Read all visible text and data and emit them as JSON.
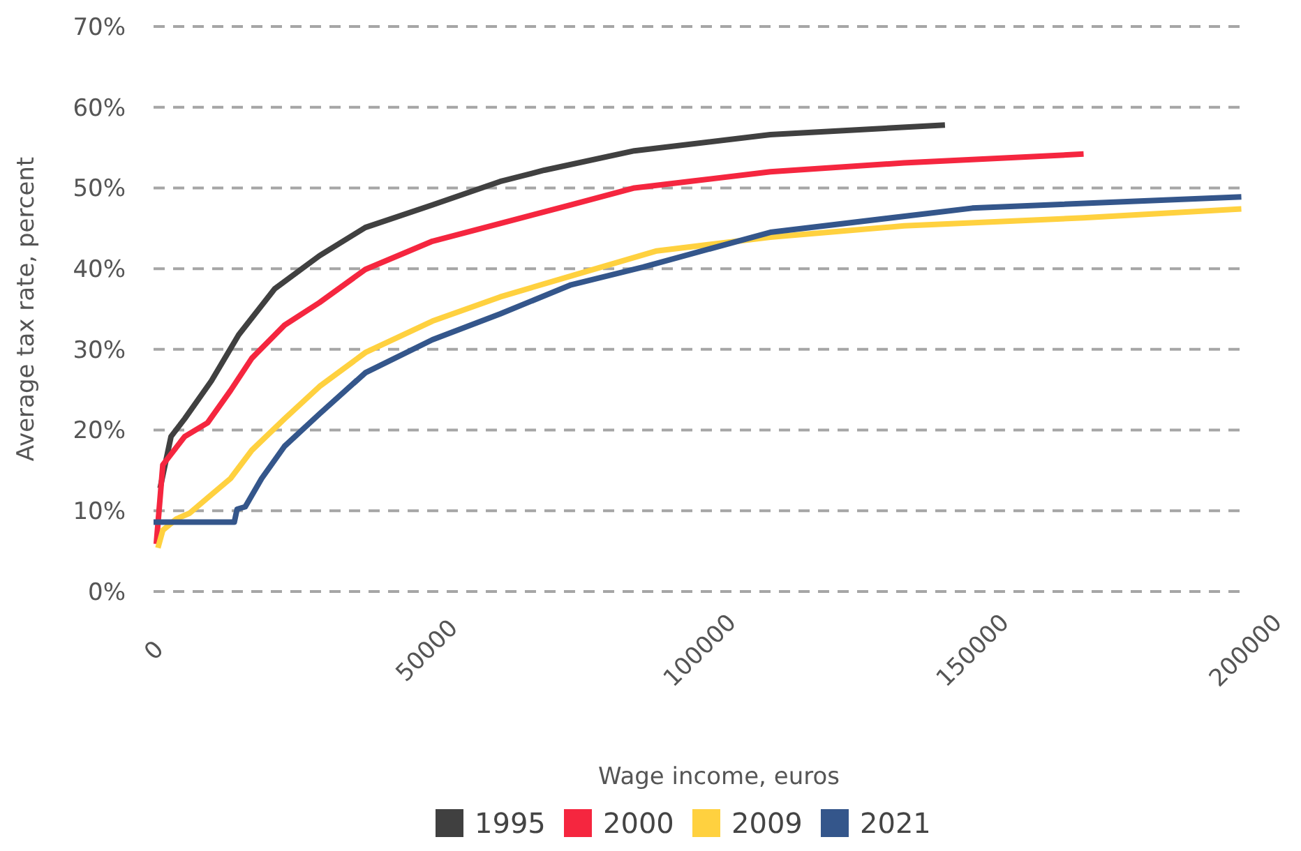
{
  "chart_data": {
    "type": "line",
    "xlabel": "Wage income, euros",
    "ylabel": "Average tax rate, percent",
    "xlim": [
      0,
      200000
    ],
    "xticks": [
      0,
      50000,
      100000,
      150000,
      200000
    ],
    "ylim": [
      0,
      70
    ],
    "yticks": [
      {
        "value": 0,
        "label": "0%"
      },
      {
        "value": 10,
        "label": "10%"
      },
      {
        "value": 20,
        "label": "20%"
      },
      {
        "value": 30,
        "label": "30%"
      },
      {
        "value": 40,
        "label": "40%"
      },
      {
        "value": 50,
        "label": "50%"
      },
      {
        "value": 60,
        "label": "60%"
      },
      {
        "value": 70,
        "label": "70%"
      }
    ],
    "grid": "y",
    "legend": "bottom",
    "marker": "none",
    "line_style": "solid",
    "series": [
      {
        "name": "1995",
        "color": "#404040",
        "x": [
          1200,
          3200,
          5700,
          10600,
          15600,
          22200,
          30400,
          38800,
          51100,
          63500,
          71600,
          88100,
          113000,
          145000
        ],
        "values": [
          12.8,
          19.2,
          21.4,
          26.1,
          31.8,
          37.5,
          41.6,
          45.1,
          47.9,
          50.8,
          52.2,
          54.6,
          56.6,
          57.8
        ]
      },
      {
        "name": "2000",
        "color": "#f5263f",
        "x": [
          500,
          1700,
          5700,
          9900,
          14100,
          18000,
          24000,
          30400,
          38800,
          51100,
          63500,
          76500,
          88100,
          113000,
          137500,
          170400
        ],
        "values": [
          5.9,
          15.7,
          19.2,
          20.9,
          24.9,
          28.9,
          33.0,
          35.8,
          39.9,
          43.4,
          45.6,
          47.9,
          50.0,
          52.0,
          53.1,
          54.2
        ]
      },
      {
        "name": "2009",
        "color": "#ffd13f",
        "x": [
          800,
          1700,
          4200,
          6600,
          9900,
          14100,
          18000,
          24000,
          30400,
          38800,
          51100,
          63500,
          76500,
          92200,
          113000,
          137500,
          170400,
          199300
        ],
        "values": [
          5.4,
          7.6,
          9.0,
          9.7,
          11.6,
          14.0,
          17.5,
          21.4,
          25.4,
          29.6,
          33.5,
          36.5,
          39.1,
          42.2,
          43.9,
          45.3,
          46.3,
          47.4
        ]
      },
      {
        "name": "2021",
        "color": "#34568b",
        "x": [
          0,
          14800,
          15300,
          16800,
          19800,
          24000,
          30400,
          38800,
          51100,
          63500,
          76500,
          89700,
          113000,
          150000,
          199300
        ],
        "values": [
          8.6,
          8.6,
          10.2,
          10.5,
          14.0,
          18.0,
          22.0,
          27.1,
          31.2,
          34.4,
          38.0,
          40.2,
          44.5,
          47.5,
          48.9
        ]
      }
    ]
  }
}
